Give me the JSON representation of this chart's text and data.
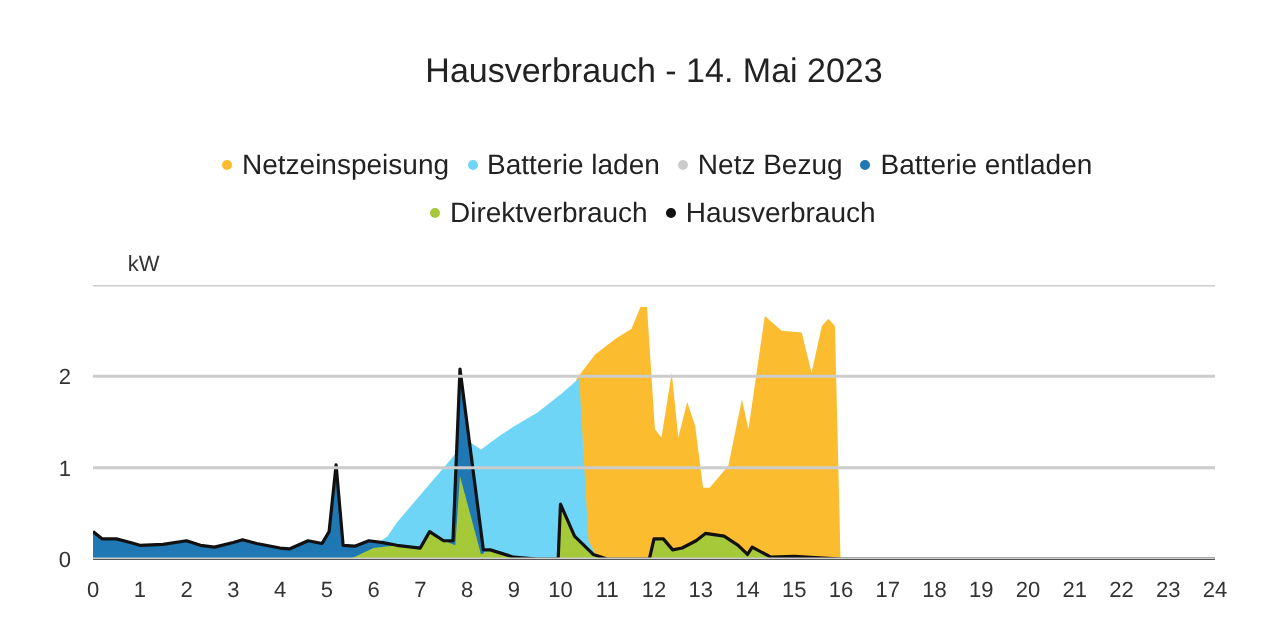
{
  "chart_data": {
    "type": "area",
    "title": "Hausverbrauch - 14. Mai 2023",
    "ylabel": "kW",
    "xlim": [
      0,
      24
    ],
    "xticks": [
      0,
      1,
      2,
      3,
      4,
      5,
      6,
      7,
      8,
      9,
      10,
      11,
      12,
      13,
      14,
      15,
      16,
      17,
      18,
      19,
      20,
      21,
      22,
      23,
      24
    ],
    "ylim": [
      0,
      3
    ],
    "yticks": [
      0,
      1,
      2,
      {
        "value": 3,
        "label": null
      }
    ],
    "grid": "y",
    "legend": "top",
    "series": [
      {
        "name": "Netzeinspeisung",
        "color": "#fbbd2f",
        "x": [
          10.3,
          10.34,
          10.74,
          11.17,
          11.52,
          11.71,
          11.85,
          12.02,
          12.16,
          12.38,
          12.52,
          12.71,
          12.88,
          13.05,
          13.19,
          13.59,
          13.88,
          14.02,
          14.37,
          14.73,
          15.16,
          15.37,
          15.59,
          15.73,
          15.87,
          15.99
        ],
        "values": [
          0,
          1.97,
          2.24,
          2.41,
          2.52,
          2.76,
          2.76,
          1.42,
          1.33,
          2.04,
          1.33,
          1.72,
          1.46,
          0.78,
          0.78,
          1.02,
          1.75,
          1.42,
          2.66,
          2.5,
          2.48,
          2.04,
          2.55,
          2.63,
          2.55,
          0
        ]
      },
      {
        "name": "Batterie laden",
        "color": "#6fd5f7",
        "x": [
          5.6,
          6.3,
          6.5,
          7,
          7.5,
          8,
          8.3,
          8.7,
          9,
          9.5,
          10,
          10.4,
          10.6,
          10.8
        ],
        "values": [
          0,
          0.25,
          0.4,
          0.7,
          1.0,
          1.3,
          1.2,
          1.35,
          1.45,
          1.6,
          1.8,
          1.98,
          0.2,
          0
        ]
      },
      {
        "name": "Netz Bezug",
        "color": "#cccccc"
      },
      {
        "name": "Batterie entladen",
        "color": "#1f78b4",
        "x": [
          0,
          0.2,
          0.5,
          0.8,
          1,
          1.5,
          2,
          2.3,
          2.6,
          3,
          3.2,
          3.5,
          4,
          4.2,
          4.6,
          4.9,
          5.05,
          5.2,
          5.35,
          5.6,
          5.9,
          6.2,
          6.4,
          6.45,
          7.7,
          7.85,
          8.35,
          8.4
        ],
        "values": [
          0.3,
          0.22,
          0.22,
          0.18,
          0.15,
          0.16,
          0.2,
          0.15,
          0.13,
          0.18,
          0.21,
          0.17,
          0.12,
          0.11,
          0.2,
          0.17,
          0.3,
          1.03,
          0.15,
          0.14,
          0.2,
          0.18,
          0.17,
          0,
          0.2,
          2.08,
          0.1,
          0
        ]
      },
      {
        "name": "Direktverbrauch",
        "color": "#a6c93a",
        "x": [
          5.5,
          6,
          6.5,
          7,
          7.2,
          7.5,
          7.75,
          7.85,
          8.3,
          8.5,
          9,
          9.5,
          9.95,
          10,
          10.3,
          10.7,
          11,
          11.9,
          12,
          12.2,
          12.4,
          12.6,
          12.9,
          13.1,
          13.5,
          13.8,
          14,
          14.1,
          14.5,
          15,
          16
        ],
        "values": [
          0,
          0.12,
          0.15,
          0.12,
          0.3,
          0.2,
          0.15,
          0.91,
          0.05,
          0.1,
          0.02,
          0,
          0,
          0.6,
          0.25,
          0.05,
          0,
          0,
          0.22,
          0.22,
          0.1,
          0.12,
          0.2,
          0.28,
          0.25,
          0.15,
          0.05,
          0.13,
          0.02,
          0.03,
          0
        ]
      },
      {
        "name": "Hausverbrauch",
        "color": "#111111",
        "type": "line",
        "x": [
          0,
          0.2,
          0.5,
          0.8,
          1,
          1.5,
          2,
          2.3,
          2.6,
          3,
          3.2,
          3.5,
          4,
          4.2,
          4.6,
          4.9,
          5.05,
          5.2,
          5.35,
          5.6,
          5.9,
          6.2,
          6.5,
          7,
          7.2,
          7.5,
          7.7,
          7.85,
          8.35,
          8.5,
          9,
          9.5,
          9.95,
          10,
          10.3,
          10.7,
          11,
          11.9,
          12,
          12.2,
          12.4,
          12.6,
          12.9,
          13.1,
          13.5,
          13.8,
          14,
          14.1,
          14.5,
          15,
          16,
          24
        ],
        "values": [
          0.3,
          0.22,
          0.22,
          0.18,
          0.15,
          0.16,
          0.2,
          0.15,
          0.13,
          0.18,
          0.21,
          0.17,
          0.12,
          0.11,
          0.2,
          0.17,
          0.3,
          1.03,
          0.15,
          0.14,
          0.2,
          0.18,
          0.15,
          0.12,
          0.3,
          0.2,
          0.2,
          2.08,
          0.1,
          0.1,
          0.02,
          0,
          0,
          0.6,
          0.25,
          0.05,
          0,
          0,
          0.22,
          0.22,
          0.1,
          0.12,
          0.2,
          0.28,
          0.25,
          0.15,
          0.05,
          0.13,
          0.02,
          0.03,
          0,
          0
        ]
      }
    ]
  }
}
